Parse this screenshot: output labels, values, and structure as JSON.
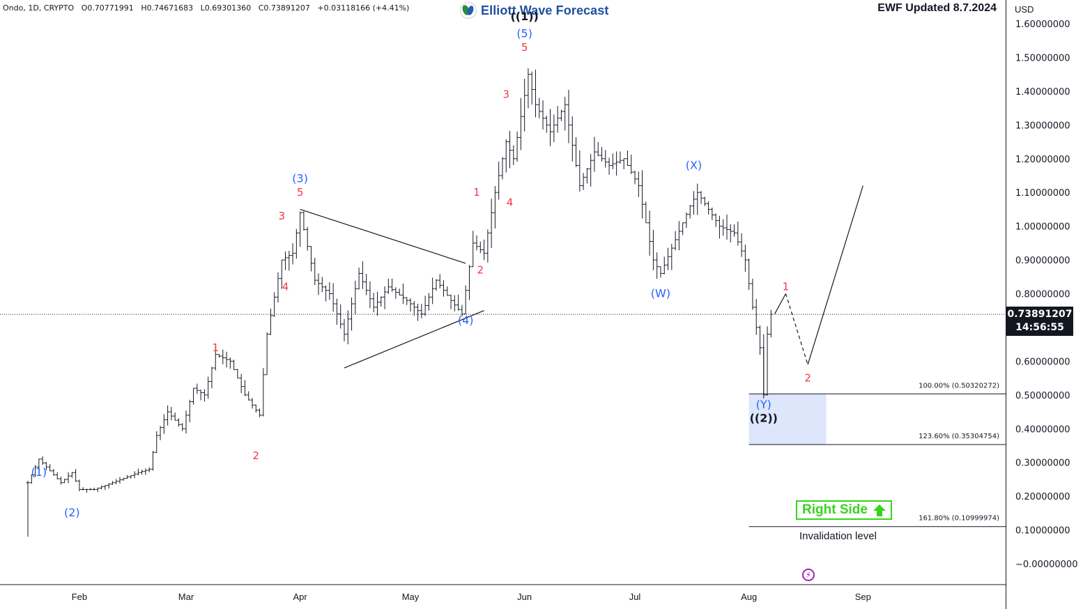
{
  "header": {
    "symbol": "Ondo, 1D, CRYPTO",
    "open": "O0.70771991",
    "high": "H0.74671683",
    "low": "L0.69301360",
    "close": "C0.73891207",
    "change": "+0.03118166 (+4.41%)"
  },
  "brand": {
    "name": "Elliott Wave Forecast"
  },
  "updated": "EWF Updated 8.7.2024",
  "currency": "USD",
  "price_tag": {
    "price": "0.73891207",
    "countdown": "14:56:55"
  },
  "right_side": {
    "label": "Right Side"
  },
  "invalidation_label": "Invalidation level",
  "colors": {
    "blue_label": "#2962ff",
    "red_label": "#f23645",
    "zone_fill": "#dde6fb",
    "right_side": "#36d41a",
    "candles": "#131722"
  },
  "chart_data": {
    "type": "candlestick",
    "symbol": "Ondo",
    "timeframe": "1D",
    "ylim": [
      -0.06,
      1.63
    ],
    "y_ticks": [
      "1.60000000",
      "1.50000000",
      "1.40000000",
      "1.30000000",
      "1.20000000",
      "1.10000000",
      "1.00000000",
      "0.90000000",
      "0.80000000",
      "0.70000000",
      "0.60000000",
      "0.50000000",
      "0.40000000",
      "0.30000000",
      "0.20000000",
      "0.10000000",
      "−0.00000000"
    ],
    "y_tick_values": [
      1.6,
      1.5,
      1.4,
      1.3,
      1.2,
      1.1,
      1.0,
      0.9,
      0.8,
      0.7,
      0.6,
      0.5,
      0.4,
      0.3,
      0.2,
      0.1,
      0.0
    ],
    "x_ticks": [
      "Feb",
      "Mar",
      "Apr",
      "May",
      "Jun",
      "Jul",
      "Aug",
      "Sep"
    ],
    "x_tick_dates": [
      "2024-02-01",
      "2024-03-01",
      "2024-04-01",
      "2024-05-01",
      "2024-06-01",
      "2024-07-01",
      "2024-08-01",
      "2024-09-01"
    ],
    "x_range": [
      "2024-01-18",
      "2024-09-25"
    ],
    "current_price": 0.73891207,
    "price_points": [
      [
        "2024-01-18",
        0.24
      ],
      [
        "2024-01-21",
        0.31
      ],
      [
        "2024-01-27",
        0.24
      ],
      [
        "2024-01-30",
        0.27
      ],
      [
        "2024-02-01",
        0.22
      ],
      [
        "2024-02-05",
        0.22
      ],
      [
        "2024-02-10",
        0.24
      ],
      [
        "2024-02-17",
        0.27
      ],
      [
        "2024-02-20",
        0.28
      ],
      [
        "2024-02-22",
        0.38
      ],
      [
        "2024-02-25",
        0.45
      ],
      [
        "2024-02-29",
        0.4
      ],
      [
        "2024-03-03",
        0.52
      ],
      [
        "2024-03-06",
        0.5
      ],
      [
        "2024-03-09",
        0.62
      ],
      [
        "2024-03-13",
        0.6
      ],
      [
        "2024-03-17",
        0.5
      ],
      [
        "2024-03-21",
        0.44
      ],
      [
        "2024-03-23",
        0.68
      ],
      [
        "2024-03-27",
        0.9
      ],
      [
        "2024-03-30",
        0.92
      ],
      [
        "2024-04-01",
        1.04
      ],
      [
        "2024-04-05",
        0.84
      ],
      [
        "2024-04-09",
        0.8
      ],
      [
        "2024-04-13",
        0.68
      ],
      [
        "2024-04-17",
        0.86
      ],
      [
        "2024-04-21",
        0.76
      ],
      [
        "2024-04-25",
        0.82
      ],
      [
        "2024-04-30",
        0.78
      ],
      [
        "2024-05-04",
        0.74
      ],
      [
        "2024-05-08",
        0.84
      ],
      [
        "2024-05-12",
        0.78
      ],
      [
        "2024-05-15",
        0.74
      ],
      [
        "2024-05-18",
        0.95
      ],
      [
        "2024-05-21",
        0.92
      ],
      [
        "2024-05-24",
        1.1
      ],
      [
        "2024-05-27",
        1.25
      ],
      [
        "2024-05-29",
        1.2
      ],
      [
        "2024-06-02",
        1.45
      ],
      [
        "2024-06-04",
        1.36
      ],
      [
        "2024-06-08",
        1.28
      ],
      [
        "2024-06-12",
        1.36
      ],
      [
        "2024-06-16",
        1.12
      ],
      [
        "2024-06-20",
        1.22
      ],
      [
        "2024-06-24",
        1.18
      ],
      [
        "2024-06-28",
        1.2
      ],
      [
        "2024-07-02",
        1.12
      ],
      [
        "2024-07-06",
        0.9
      ],
      [
        "2024-07-08",
        0.86
      ],
      [
        "2024-07-12",
        0.96
      ],
      [
        "2024-07-16",
        1.06
      ],
      [
        "2024-07-18",
        1.1
      ],
      [
        "2024-07-21",
        1.05
      ],
      [
        "2024-07-24",
        1.0
      ],
      [
        "2024-07-28",
        0.98
      ],
      [
        "2024-07-31",
        0.9
      ],
      [
        "2024-08-02",
        0.76
      ],
      [
        "2024-08-04",
        0.64
      ],
      [
        "2024-08-05",
        0.5
      ],
      [
        "2024-08-06",
        0.68
      ],
      [
        "2024-08-07",
        0.73891207
      ]
    ],
    "triangle": {
      "upper": [
        [
          "2024-04-01",
          1.05
        ],
        [
          "2024-05-16",
          0.89
        ]
      ],
      "lower": [
        [
          "2024-04-13",
          0.58
        ],
        [
          "2024-05-21",
          0.75
        ]
      ]
    },
    "projection": [
      [
        "2024-08-08",
        0.74
      ],
      [
        "2024-08-11",
        0.8
      ],
      [
        "2024-08-17",
        0.59
      ],
      [
        "2024-09-01",
        1.12
      ]
    ],
    "fib_levels": [
      {
        "label": "100.00% (0.50320272)",
        "value": 0.50320272
      },
      {
        "label": "123.60% (0.35304754)",
        "value": 0.35304754
      },
      {
        "label": "161.80% (0.10999974)",
        "value": 0.10999974
      }
    ],
    "target_zone": {
      "start": "2024-08-01",
      "end": "2024-08-22",
      "top": 0.50320272,
      "bottom": 0.35304754
    },
    "wave_labels": [
      {
        "text": "(1)",
        "date": "2024-01-21",
        "price": 0.26,
        "color": "blue"
      },
      {
        "text": "(2)",
        "date": "2024-01-30",
        "price": 0.14,
        "color": "blue"
      },
      {
        "text": "1",
        "date": "2024-03-09",
        "price": 0.63,
        "color": "red"
      },
      {
        "text": "2",
        "date": "2024-03-20",
        "price": 0.31,
        "color": "red"
      },
      {
        "text": "3",
        "date": "2024-03-27",
        "price": 1.02,
        "color": "red"
      },
      {
        "text": "4",
        "date": "2024-03-28",
        "price": 0.81,
        "color": "red"
      },
      {
        "text": "5",
        "date": "2024-04-01",
        "price": 1.09,
        "color": "red"
      },
      {
        "text": "(3)",
        "date": "2024-04-01",
        "price": 1.13,
        "color": "blue"
      },
      {
        "text": "(4)",
        "date": "2024-05-16",
        "price": 0.71,
        "color": "blue"
      },
      {
        "text": "1",
        "date": "2024-05-19",
        "price": 1.09,
        "color": "red"
      },
      {
        "text": "2",
        "date": "2024-05-20",
        "price": 0.86,
        "color": "red"
      },
      {
        "text": "3",
        "date": "2024-05-27",
        "price": 1.38,
        "color": "red"
      },
      {
        "text": "4",
        "date": "2024-05-28",
        "price": 1.06,
        "color": "red"
      },
      {
        "text": "5",
        "date": "2024-06-01",
        "price": 1.52,
        "color": "red"
      },
      {
        "text": "(5)",
        "date": "2024-06-01",
        "price": 1.56,
        "color": "blue"
      },
      {
        "text": "((1))",
        "date": "2024-06-01",
        "price": 1.61,
        "color": "black"
      },
      {
        "text": "(W)",
        "date": "2024-07-08",
        "price": 0.79,
        "color": "blue"
      },
      {
        "text": "(X)",
        "date": "2024-07-17",
        "price": 1.17,
        "color": "blue"
      },
      {
        "text": "(Y)",
        "date": "2024-08-05",
        "price": 0.46,
        "color": "blue"
      },
      {
        "text": "((2))",
        "date": "2024-08-05",
        "price": 0.42,
        "color": "black"
      },
      {
        "text": "1",
        "date": "2024-08-11",
        "price": 0.81,
        "color": "red"
      },
      {
        "text": "2",
        "date": "2024-08-17",
        "price": 0.54,
        "color": "red"
      }
    ]
  }
}
